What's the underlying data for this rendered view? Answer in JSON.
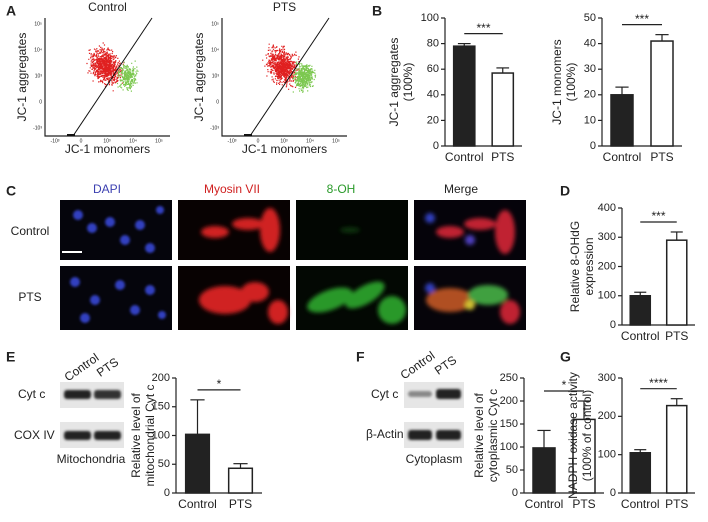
{
  "panel_labels": [
    "A",
    "B",
    "C",
    "D",
    "E",
    "F",
    "G"
  ],
  "flow": {
    "titles": [
      "Control",
      "PTS"
    ],
    "ylabel": "JC-1 aggregates",
    "xlabel": "JC-1 monomers",
    "yticks": [
      "10⁵",
      "10⁴",
      "10³",
      "0",
      "-10³"
    ],
    "xticks": [
      "-10³",
      "0",
      "10³",
      "10⁴",
      "10⁵"
    ]
  },
  "microscopy": {
    "columns": [
      "DAPI",
      "Myosin VII",
      "8-OH",
      "Merge"
    ],
    "rows": [
      "Control",
      "PTS"
    ]
  },
  "blot_e": {
    "lanes": [
      "Control",
      "PTS"
    ],
    "bands": [
      "Cyt c",
      "COX IV"
    ],
    "caption": "Mitochondria"
  },
  "blot_f": {
    "lanes": [
      "Control",
      "PTS"
    ],
    "bands": [
      "Cyt c",
      "β-Actin"
    ],
    "caption": "Cytoplasm"
  },
  "chart_data": [
    {
      "type": "bar",
      "ylabel": [
        "JC-1 aggregates",
        "(100%)"
      ],
      "categories": [
        "Control",
        "PTS"
      ],
      "values": [
        78,
        57
      ],
      "errors": [
        2,
        4
      ],
      "colors": [
        "#222222",
        "#ffffff"
      ],
      "ylim": [
        0,
        100
      ],
      "yticks": [
        0,
        20,
        40,
        60,
        80,
        100
      ],
      "significance": "***"
    },
    {
      "type": "bar",
      "ylabel": [
        "JC-1 monomers",
        "(100%)"
      ],
      "categories": [
        "Control",
        "PTS"
      ],
      "values": [
        20,
        41
      ],
      "errors": [
        3,
        2.5
      ],
      "colors": [
        "#222222",
        "#ffffff"
      ],
      "ylim": [
        0,
        50
      ],
      "yticks": [
        0,
        10,
        20,
        30,
        40,
        50
      ],
      "significance": "***"
    },
    {
      "type": "bar",
      "ylabel": [
        "Relative 8-OHdG",
        "expression"
      ],
      "categories": [
        "Control",
        "PTS"
      ],
      "values": [
        100,
        290
      ],
      "errors": [
        12,
        28
      ],
      "colors": [
        "#222222",
        "#ffffff"
      ],
      "ylim": [
        0,
        400
      ],
      "yticks": [
        0,
        100,
        200,
        300,
        400
      ],
      "significance": "***"
    },
    {
      "type": "bar",
      "ylabel": [
        "Relative level of",
        "mitochondrial Cyt c"
      ],
      "categories": [
        "Control",
        "PTS"
      ],
      "values": [
        102,
        43
      ],
      "errors": [
        60,
        8
      ],
      "colors": [
        "#222222",
        "#ffffff"
      ],
      "ylim": [
        0,
        200
      ],
      "yticks": [
        0,
        50,
        100,
        150,
        200
      ],
      "significance": "*"
    },
    {
      "type": "bar",
      "ylabel": [
        "Relative level of",
        "cytoplasmic Cyt c"
      ],
      "categories": [
        "Control",
        "PTS"
      ],
      "values": [
        98,
        160
      ],
      "errors": [
        38,
        40
      ],
      "colors": [
        "#222222",
        "#ffffff"
      ],
      "ylim": [
        0,
        250
      ],
      "yticks": [
        0,
        50,
        100,
        150,
        200,
        250
      ],
      "significance": "*"
    },
    {
      "type": "bar",
      "ylabel": [
        "NADPH oxidase activity",
        "(100% of control)"
      ],
      "categories": [
        "Control",
        "PTS"
      ],
      "values": [
        105,
        228
      ],
      "errors": [
        8,
        18
      ],
      "colors": [
        "#222222",
        "#ffffff"
      ],
      "ylim": [
        0,
        300
      ],
      "yticks": [
        0,
        100,
        200,
        300
      ],
      "significance": "****"
    }
  ]
}
